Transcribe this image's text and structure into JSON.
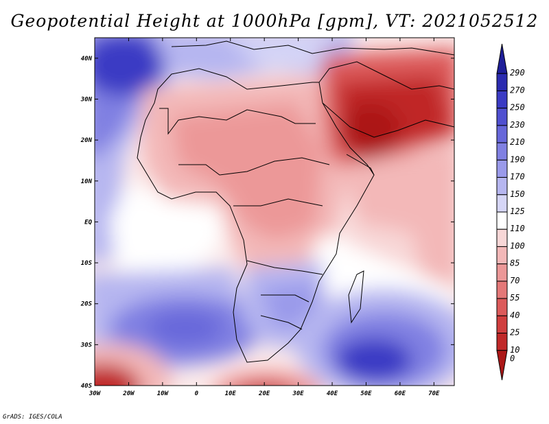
{
  "title": "Geopotential Height at 1000hPa [gpm], VT: 2021052512",
  "credit": "GrADS: IGES/COLA",
  "map": {
    "lon_labels": [
      "30W",
      "20W",
      "10W",
      "0",
      "10E",
      "20E",
      "30E",
      "40E",
      "50E",
      "60E",
      "70E"
    ],
    "lat_labels": [
      "40N",
      "30N",
      "20N",
      "10N",
      "EQ",
      "10S",
      "20S",
      "30S",
      "40S"
    ],
    "lon_range": [
      -30,
      76
    ],
    "lat_range": [
      -40,
      45
    ]
  },
  "colorbar": {
    "labels": [
      "290",
      "270",
      "250",
      "230",
      "210",
      "190",
      "170",
      "150",
      "125",
      "110",
      "100",
      "85",
      "70",
      "55",
      "40",
      "25",
      "10",
      "0"
    ],
    "colors": [
      "#1e1e98",
      "#2b2bb0",
      "#3b3bc4",
      "#5050d0",
      "#6767da",
      "#8080e2",
      "#9a9aea",
      "#b6b6f0",
      "#d6d6f7",
      "#ffffff",
      "#f8d7d7",
      "#f3b8b8",
      "#ec9898",
      "#e47878",
      "#dc5a5a",
      "#d03e3e",
      "#c02828",
      "#ac1818"
    ]
  }
}
